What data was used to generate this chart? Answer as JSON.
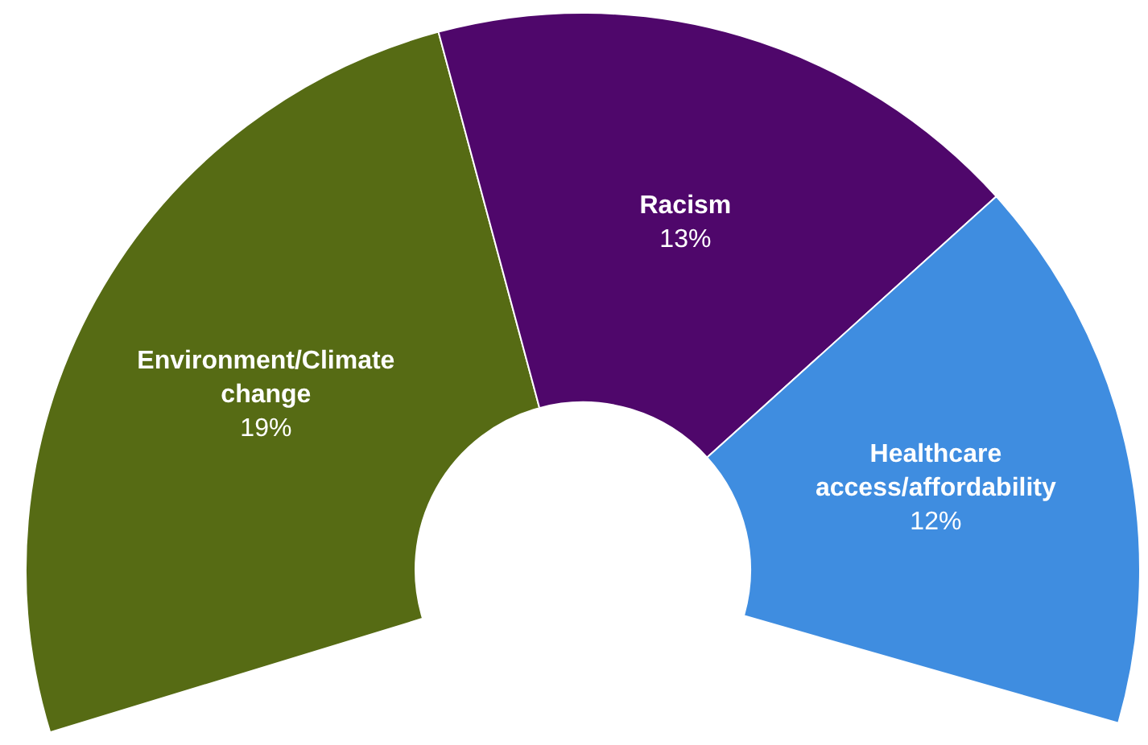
{
  "chart_data": {
    "type": "donut",
    "categories": [
      "Environment/Climate change",
      "Racism",
      "Healthcare access/affordability"
    ],
    "values": [
      19,
      13,
      12
    ],
    "colors": [
      "#566b14",
      "#4f076b",
      "#3f8de0"
    ],
    "value_labels": [
      "19%",
      "13%",
      "12%"
    ]
  }
}
